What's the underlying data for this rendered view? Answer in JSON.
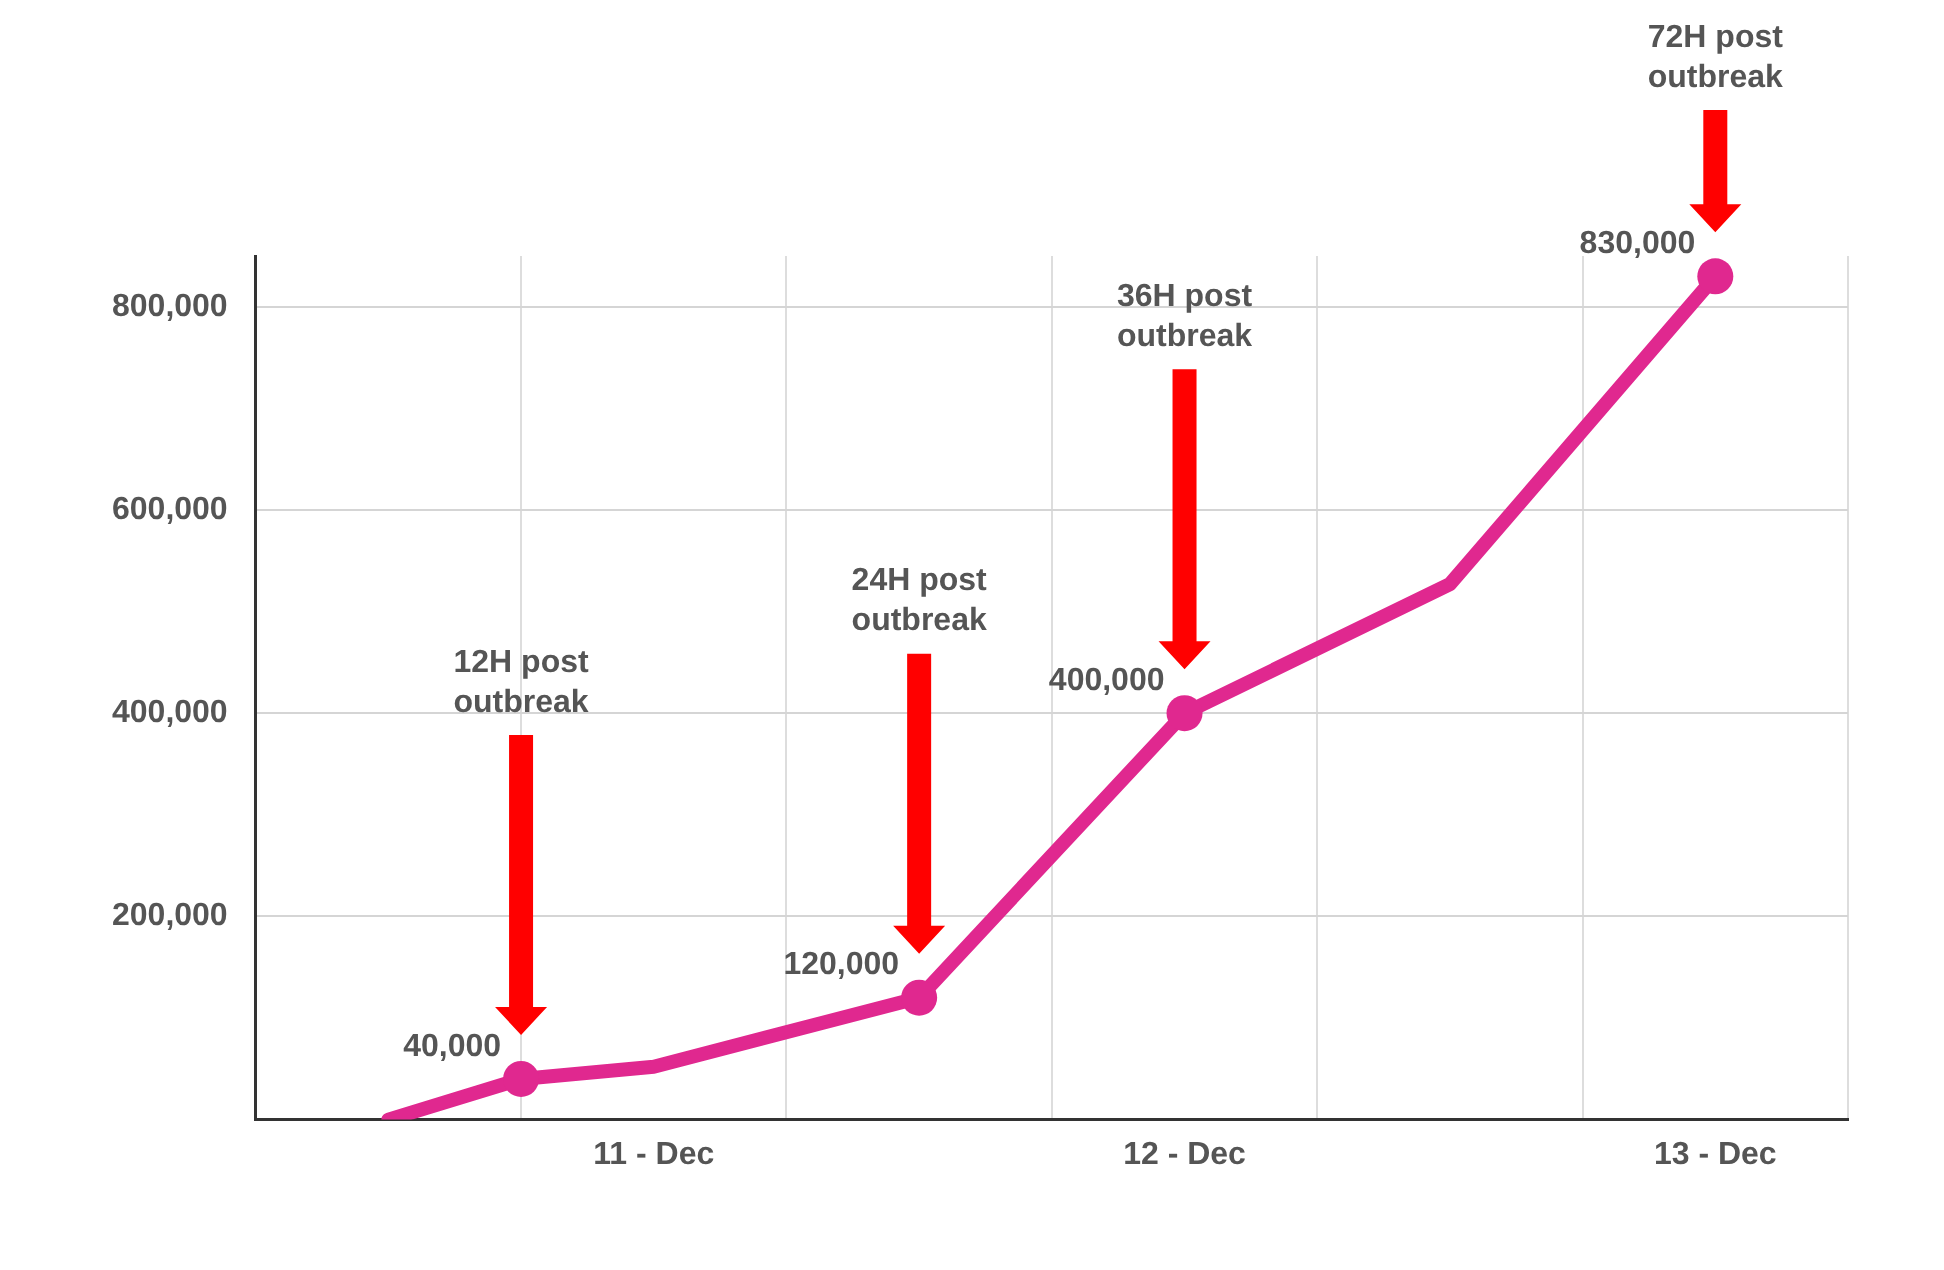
{
  "chart_data": {
    "type": "line",
    "categories": [
      null,
      null,
      null,
      "11 - Dec",
      null,
      null,
      null,
      "12 - Dec",
      null,
      null,
      null,
      "13 - Dec",
      null
    ],
    "series": [
      {
        "type": "line",
        "color": "#e0288f",
        "marker": "none",
        "values": [
          null,
          0,
          40000,
          52000,
          null,
          120000,
          null,
          400000,
          null,
          527000,
          null,
          830000,
          null
        ]
      },
      {
        "type": "scatter",
        "color": "#e0288f",
        "marker": "circle",
        "values": [
          null,
          null,
          40000,
          null,
          null,
          120000,
          null,
          400000,
          null,
          null,
          null,
          830000,
          null
        ],
        "value_labels": [
          null,
          null,
          "40,000",
          null,
          null,
          "120,000",
          null,
          "400,000",
          null,
          null,
          null,
          "830,000",
          null
        ]
      }
    ],
    "ylim": [
      0,
      850000
    ],
    "yticks": [
      "200,000",
      "400,000",
      "600,000",
      "800,000"
    ],
    "grid": true,
    "legend": false,
    "annotations": [
      "12H post outbreak",
      "24H post outbreak",
      "36H post outbreak",
      "72H post outbreak"
    ]
  }
}
